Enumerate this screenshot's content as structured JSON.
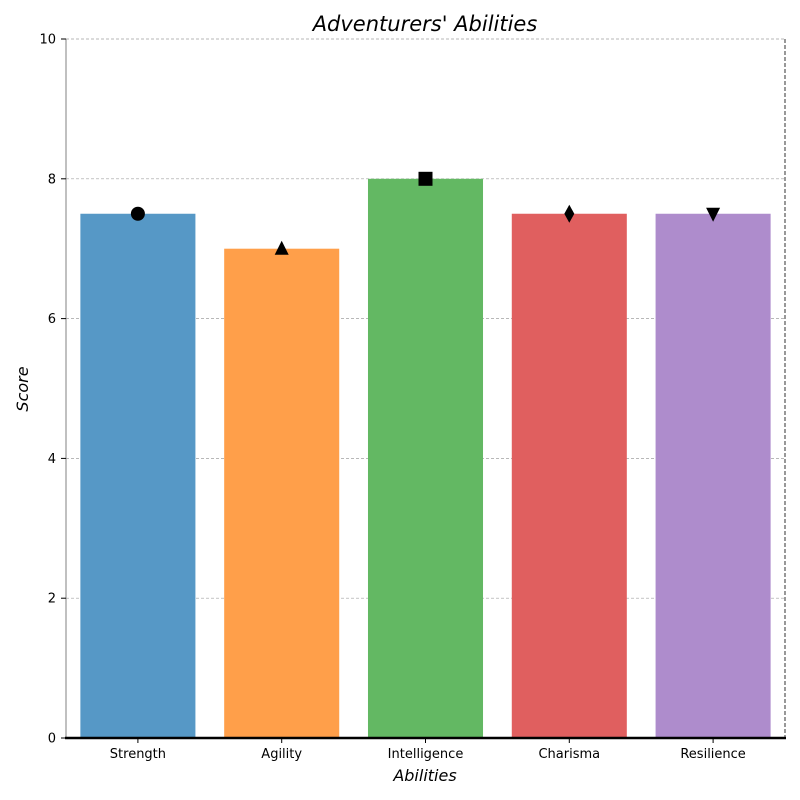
{
  "chart_data": {
    "type": "bar",
    "title": "Adventurers' Abilities",
    "xlabel": "Abilities",
    "ylabel": "Score",
    "categories": [
      "Strength",
      "Agility",
      "Intelligence",
      "Charisma",
      "Resilience"
    ],
    "values": [
      7.5,
      7.0,
      8.0,
      7.5,
      7.5
    ],
    "colors": [
      "#5698c6",
      "#ff9f4a",
      "#63b863",
      "#e05f5f",
      "#ae8ccc"
    ],
    "markers": [
      "circle",
      "triangle-up",
      "square",
      "thin-diamond",
      "triangle-down"
    ],
    "marker_color": "#000000",
    "ylim": [
      0,
      10
    ],
    "yticks": [
      "0",
      "2",
      "4",
      "6",
      "8",
      "10"
    ],
    "grid": true,
    "legend": "none"
  }
}
